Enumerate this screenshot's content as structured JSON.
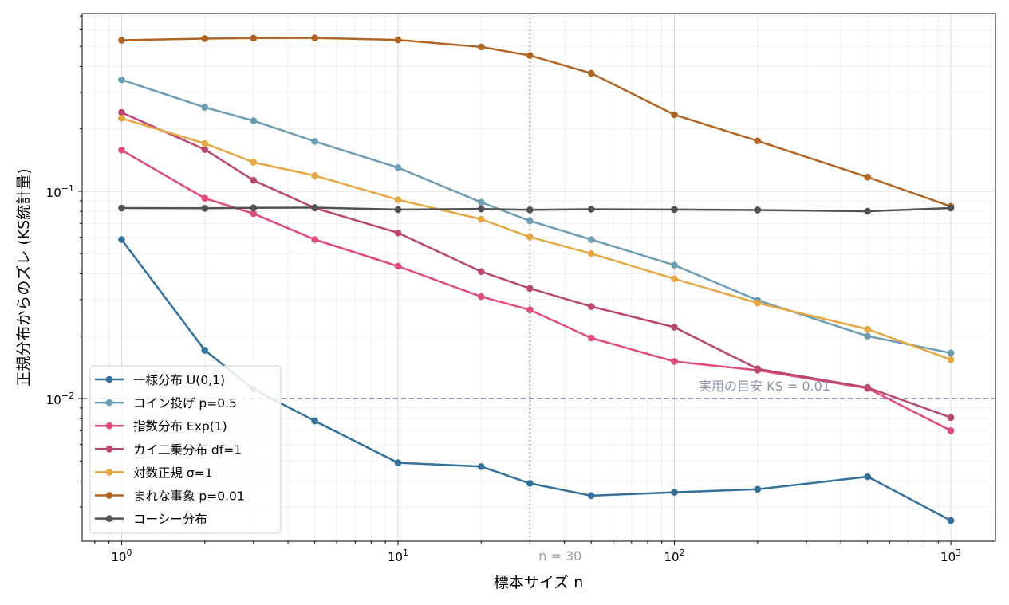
{
  "chart_data": {
    "type": "line",
    "xlabel": "標本サイズ n",
    "ylabel": "正規分布からのズレ (KS統計量)",
    "xscale": "log",
    "yscale": "log",
    "xlim": [
      0.72,
      1450
    ],
    "ylim": [
      0.00205,
      0.72
    ],
    "grid": true,
    "legend_position": "bottom-left",
    "x": [
      1,
      2,
      3,
      5,
      10,
      20,
      30,
      50,
      100,
      200,
      500,
      1000
    ],
    "x_tick_labels": [
      {
        "value": 1,
        "base": "10",
        "exp": "0"
      },
      {
        "value": 10,
        "base": "10",
        "exp": "1"
      },
      {
        "value": 100,
        "base": "10",
        "exp": "2"
      },
      {
        "value": 1000,
        "base": "10",
        "exp": "3"
      }
    ],
    "y_tick_labels": [
      {
        "value": 0.01,
        "base": "10",
        "exp": "−2"
      },
      {
        "value": 0.1,
        "base": "10",
        "exp": "−1"
      }
    ],
    "series": [
      {
        "name": "一様分布 U(0,1)",
        "color": "#33709a",
        "values": [
          0.0585,
          0.0171,
          0.0111,
          0.0078,
          0.0049,
          0.0047,
          0.0039,
          0.0034,
          0.00353,
          0.00365,
          0.0042,
          0.00258
        ]
      },
      {
        "name": "コイン投げ p=0.5",
        "color": "#6c9db3",
        "values": [
          0.345,
          0.254,
          0.219,
          0.174,
          0.13,
          0.0885,
          0.072,
          0.0585,
          0.044,
          0.0298,
          0.02,
          0.0166
        ]
      },
      {
        "name": "指数分布 Exp(1)",
        "color": "#e04c7a",
        "values": [
          0.158,
          0.0925,
          0.078,
          0.0585,
          0.0435,
          0.031,
          0.0268,
          0.0196,
          0.0151,
          0.0137,
          0.0112,
          0.007
        ]
      },
      {
        "name": "カイ二乗分布 df=1",
        "color": "#b84871",
        "values": [
          0.24,
          0.159,
          0.113,
          0.083,
          0.063,
          0.041,
          0.034,
          0.0278,
          0.0221,
          0.0139,
          0.0113,
          0.0081
        ]
      },
      {
        "name": "対数正規 σ=1",
        "color": "#e7a743",
        "values": [
          0.225,
          0.17,
          0.138,
          0.119,
          0.091,
          0.0733,
          0.0602,
          0.05,
          0.0378,
          0.0289,
          0.0216,
          0.0154
        ]
      },
      {
        "name": "まれな事象 p=0.01",
        "color": "#b06524",
        "values": [
          0.535,
          0.545,
          0.548,
          0.549,
          0.537,
          0.497,
          0.452,
          0.371,
          0.234,
          0.175,
          0.117,
          0.0845
        ]
      },
      {
        "name": "コーシー分布",
        "color": "#525252",
        "values": [
          0.083,
          0.0828,
          0.0832,
          0.0834,
          0.0816,
          0.0822,
          0.0813,
          0.0819,
          0.0816,
          0.0812,
          0.0801,
          0.083
        ]
      }
    ],
    "annotations": [
      {
        "id": "vline",
        "type": "vline",
        "x": 30,
        "text": "n = 30"
      },
      {
        "id": "hline",
        "type": "hline",
        "y": 0.01,
        "text": "実用の目安 KS = 0.01"
      }
    ]
  }
}
